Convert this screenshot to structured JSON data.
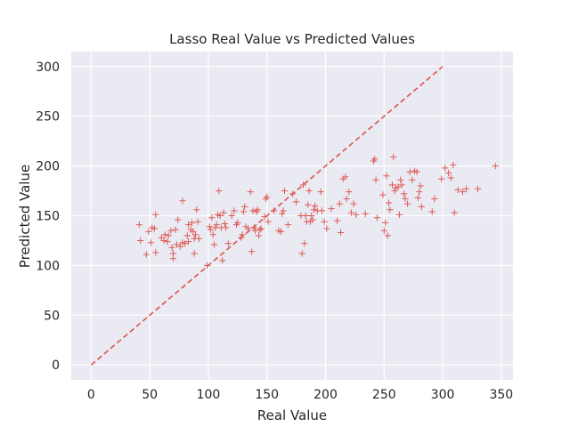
{
  "chart_data": {
    "type": "scatter",
    "title": "Lasso Real Value vs Predicted Values",
    "xlabel": "Real Value",
    "ylabel": "Predicted Value",
    "xlim": [
      -17,
      360
    ],
    "ylim": [
      -15,
      315
    ],
    "xticks": [
      0,
      50,
      100,
      150,
      200,
      250,
      300,
      350
    ],
    "yticks": [
      0,
      50,
      100,
      150,
      200,
      250,
      300
    ],
    "grid": true,
    "background_color": "#EAEAF2",
    "grid_color": "#FFFFFF",
    "marker_color": "#DD5B57",
    "marker": "plus",
    "reference_line": {
      "style": "dashed",
      "color": "#DD5B57",
      "from": [
        0,
        0
      ],
      "to": [
        300,
        300
      ]
    },
    "points": [
      [
        41,
        141
      ],
      [
        42,
        125
      ],
      [
        47,
        111
      ],
      [
        49,
        134
      ],
      [
        51,
        123
      ],
      [
        52,
        138
      ],
      [
        54,
        137
      ],
      [
        55,
        151
      ],
      [
        55,
        113
      ],
      [
        60,
        128
      ],
      [
        62,
        125
      ],
      [
        63,
        131
      ],
      [
        65,
        124
      ],
      [
        66,
        130
      ],
      [
        68,
        135
      ],
      [
        69,
        118
      ],
      [
        70,
        107
      ],
      [
        70,
        112
      ],
      [
        72,
        136
      ],
      [
        73,
        121
      ],
      [
        74,
        146
      ],
      [
        76,
        119
      ],
      [
        78,
        165
      ],
      [
        78,
        123
      ],
      [
        80,
        122
      ],
      [
        82,
        130
      ],
      [
        83,
        141
      ],
      [
        83,
        124
      ],
      [
        85,
        136
      ],
      [
        86,
        143
      ],
      [
        87,
        134
      ],
      [
        88,
        112
      ],
      [
        88,
        127
      ],
      [
        89,
        131
      ],
      [
        90,
        156
      ],
      [
        91,
        144
      ],
      [
        92,
        127
      ],
      [
        99,
        100
      ],
      [
        101,
        139
      ],
      [
        102,
        136
      ],
      [
        103,
        148
      ],
      [
        104,
        131
      ],
      [
        105,
        121
      ],
      [
        106,
        138
      ],
      [
        107,
        141
      ],
      [
        108,
        151
      ],
      [
        109,
        175
      ],
      [
        110,
        150
      ],
      [
        111,
        138
      ],
      [
        112,
        105
      ],
      [
        113,
        153
      ],
      [
        114,
        142
      ],
      [
        115,
        138
      ],
      [
        117,
        122
      ],
      [
        120,
        150
      ],
      [
        122,
        155
      ],
      [
        124,
        141
      ],
      [
        125,
        143
      ],
      [
        128,
        128
      ],
      [
        129,
        131
      ],
      [
        130,
        154
      ],
      [
        131,
        159
      ],
      [
        132,
        139
      ],
      [
        134,
        137
      ],
      [
        136,
        174
      ],
      [
        137,
        114
      ],
      [
        138,
        155
      ],
      [
        139,
        138
      ],
      [
        140,
        135
      ],
      [
        141,
        154
      ],
      [
        142,
        156
      ],
      [
        143,
        130
      ],
      [
        144,
        136
      ],
      [
        145,
        137
      ],
      [
        148,
        149
      ],
      [
        149,
        167
      ],
      [
        150,
        169
      ],
      [
        151,
        144
      ],
      [
        156,
        155
      ],
      [
        160,
        135
      ],
      [
        162,
        134
      ],
      [
        163,
        152
      ],
      [
        164,
        155
      ],
      [
        165,
        175
      ],
      [
        168,
        141
      ],
      [
        172,
        172
      ],
      [
        175,
        164
      ],
      [
        179,
        150
      ],
      [
        180,
        112
      ],
      [
        181,
        181
      ],
      [
        182,
        122
      ],
      [
        183,
        150
      ],
      [
        184,
        144
      ],
      [
        185,
        161
      ],
      [
        186,
        175
      ],
      [
        187,
        144
      ],
      [
        188,
        150
      ],
      [
        189,
        146
      ],
      [
        190,
        156
      ],
      [
        191,
        160
      ],
      [
        193,
        155
      ],
      [
        196,
        174
      ],
      [
        197,
        155
      ],
      [
        199,
        144
      ],
      [
        201,
        137
      ],
      [
        205,
        157
      ],
      [
        210,
        145
      ],
      [
        212,
        162
      ],
      [
        213,
        133
      ],
      [
        215,
        187
      ],
      [
        217,
        189
      ],
      [
        218,
        167
      ],
      [
        220,
        174
      ],
      [
        222,
        153
      ],
      [
        224,
        162
      ],
      [
        226,
        151
      ],
      [
        234,
        152
      ],
      [
        241,
        205
      ],
      [
        242,
        207
      ],
      [
        243,
        186
      ],
      [
        244,
        148
      ],
      [
        249,
        171
      ],
      [
        250,
        135
      ],
      [
        251,
        143
      ],
      [
        252,
        190
      ],
      [
        253,
        130
      ],
      [
        254,
        163
      ],
      [
        255,
        156
      ],
      [
        257,
        181
      ],
      [
        258,
        209
      ],
      [
        259,
        175
      ],
      [
        260,
        178
      ],
      [
        262,
        179
      ],
      [
        263,
        151
      ],
      [
        264,
        186
      ],
      [
        265,
        181
      ],
      [
        267,
        172
      ],
      [
        268,
        167
      ],
      [
        270,
        162
      ],
      [
        272,
        194
      ],
      [
        274,
        186
      ],
      [
        276,
        195
      ],
      [
        278,
        194
      ],
      [
        279,
        168
      ],
      [
        280,
        174
      ],
      [
        281,
        180
      ],
      [
        282,
        159
      ],
      [
        291,
        154
      ],
      [
        293,
        167
      ],
      [
        299,
        187
      ],
      [
        302,
        198
      ],
      [
        305,
        193
      ],
      [
        307,
        188
      ],
      [
        309,
        201
      ],
      [
        310,
        153
      ],
      [
        313,
        176
      ],
      [
        317,
        174
      ],
      [
        320,
        177
      ],
      [
        330,
        177
      ],
      [
        345,
        200
      ]
    ]
  }
}
